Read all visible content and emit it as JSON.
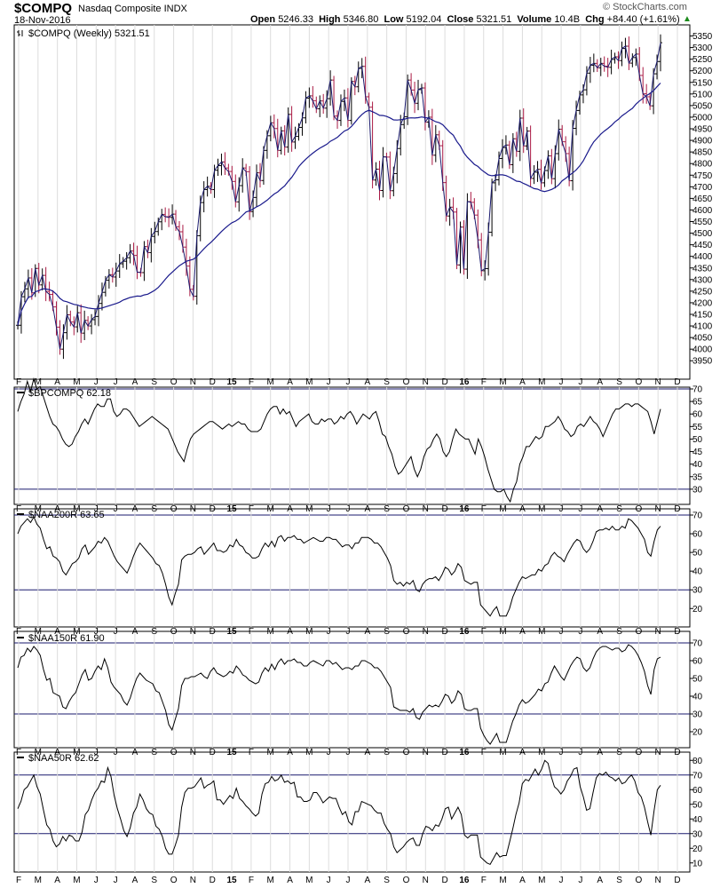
{
  "header": {
    "symbol": "$COMPQ",
    "symbol_name": "Nasdaq Composite INDX",
    "date": "18-Nov-2016",
    "watermark": "© StockCharts.com",
    "open_label": "Open",
    "open": "5246.33",
    "high_label": "High",
    "high": "5346.80",
    "low_label": "Low",
    "low": "5192.04",
    "close_label": "Close",
    "close": "5321.51",
    "volume_label": "Volume",
    "volume": "10.4B",
    "chg_label": "Chg",
    "chg": "+84.40 (+1.61%)",
    "chg_icon": "up-triangle-icon"
  },
  "colors": {
    "up_bar": "#000000",
    "down_bar": "#aa1a44",
    "price_line": "#1a1a6e",
    "moving_average": "#1a1a8c",
    "reference_line": "#1a1a6e",
    "indicator_line": "#000000"
  },
  "chart_data": [
    {
      "type": "ohlc",
      "title": "$COMPQ (Weekly) 5321.51",
      "ylim": [
        3905,
        5375
      ],
      "yticks": [
        3950,
        4000,
        4050,
        4100,
        4150,
        4200,
        4250,
        4300,
        4350,
        4400,
        4450,
        4500,
        4550,
        4600,
        4650,
        4700,
        4750,
        4800,
        4850,
        4900,
        4950,
        5000,
        5050,
        5100,
        5150,
        5200,
        5250,
        5300,
        5350
      ],
      "x_tick_labels": [
        "F",
        "M",
        "A",
        "M",
        "J",
        "J",
        "A",
        "S",
        "O",
        "N",
        "D",
        "15",
        "F",
        "M",
        "A",
        "M",
        "J",
        "J",
        "A",
        "S",
        "O",
        "N",
        "D",
        "16",
        "F",
        "M",
        "A",
        "M",
        "J",
        "J",
        "A",
        "S",
        "O",
        "N",
        "D"
      ],
      "close": [
        4103,
        4226,
        4260,
        4307,
        4243,
        4348,
        4277,
        4318,
        4249,
        4236,
        4182,
        4095,
        4000,
        4071,
        4148,
        4117,
        4096,
        4157,
        4069,
        4124,
        4100,
        4127,
        4141,
        4197,
        4245,
        4297,
        4321,
        4311,
        4337,
        4368,
        4379,
        4394,
        4423,
        4404,
        4332,
        4330,
        4442,
        4416,
        4486,
        4507,
        4549,
        4581,
        4571,
        4568,
        4582,
        4528,
        4506,
        4440,
        4358,
        4258,
        4228,
        4489,
        4632,
        4688,
        4702,
        4688,
        4771,
        4791,
        4807,
        4781,
        4766,
        4723,
        4635,
        4705,
        4781,
        4765,
        4593,
        4654,
        4760,
        4727,
        4857,
        4920,
        4976,
        4951,
        4857,
        4941,
        4871,
        5012,
        4893,
        4917,
        4956,
        4997,
        5082,
        5092,
        5071,
        5036,
        5070,
        5039,
        5080,
        5160,
        5005,
        4986,
        5068,
        5083,
        4986,
        5154,
        5131,
        5210,
        5219,
        5088,
        5043,
        4729,
        4776,
        4684,
        4829,
        4828,
        4683,
        4757,
        4865,
        4968,
        5002,
        5160,
        5117,
        5060,
        5119,
        5126,
        4979,
        5000,
        4836,
        4924,
        4877,
        4718,
        4574,
        4612,
        4591,
        4363,
        4526,
        4345,
        4636,
        4633,
        4578,
        4471,
        4338,
        4347,
        4504,
        4717,
        4730,
        4822,
        4869,
        4880,
        4795,
        4907,
        4853,
        4996,
        4876,
        4940,
        4736,
        4763,
        4775,
        4717,
        4770,
        4833,
        4735,
        4843,
        4948,
        4894,
        4843,
        4726,
        4952,
        5029,
        5096,
        5118,
        5190,
        5224,
        5232,
        5213,
        5232,
        5220,
        5215,
        5249,
        5260,
        5244,
        5296,
        5306,
        5233,
        5257,
        5272,
        5180,
        5101,
        5088,
        5049,
        5187,
        5240,
        5321
      ],
      "ma_period": 30,
      "ma_color": "#1a1a8c"
    },
    {
      "type": "line",
      "title": "$BPCOMPQ 62.18",
      "ylim": [
        25,
        70
      ],
      "yticks": [
        30,
        35,
        40,
        45,
        50,
        55,
        60,
        65,
        70
      ],
      "ref_lines": [
        30,
        70
      ],
      "values": [
        61,
        65,
        68,
        73,
        69,
        74,
        70,
        71,
        67,
        63,
        59,
        56,
        55,
        53,
        50,
        48,
        47,
        48,
        51,
        53,
        56,
        58,
        56,
        59,
        62,
        64,
        63,
        63,
        66,
        66,
        61,
        59,
        60,
        62,
        62,
        61,
        59,
        57,
        55,
        56,
        57,
        58,
        59,
        58,
        57,
        56,
        55,
        54,
        51,
        48,
        45,
        43,
        41,
        46,
        50,
        52,
        53,
        54,
        55,
        56,
        57,
        57,
        56,
        55,
        54,
        55,
        56,
        55,
        56,
        57,
        56,
        56,
        54,
        53,
        53,
        53,
        54,
        57,
        60,
        62,
        63,
        63,
        60,
        62,
        60,
        61,
        58,
        55,
        57,
        58,
        59,
        60,
        57,
        56,
        56,
        58,
        57,
        58,
        58,
        56,
        57,
        59,
        58,
        60,
        61,
        59,
        56,
        58,
        60,
        59,
        58,
        60,
        61,
        57,
        52,
        51,
        47,
        44,
        39,
        36,
        37,
        39,
        41,
        43,
        38,
        35,
        38,
        43,
        46,
        47,
        50,
        52,
        50,
        45,
        43,
        45,
        50,
        54,
        52,
        51,
        50,
        50,
        47,
        44,
        50,
        47,
        43,
        38,
        34,
        30,
        29,
        29,
        30,
        27,
        25,
        30,
        33,
        40,
        43,
        47,
        47,
        49,
        51,
        50,
        51,
        55,
        55,
        56,
        57,
        59,
        57,
        54,
        53,
        51,
        52,
        55,
        56,
        55,
        57,
        59,
        57,
        56,
        54,
        51,
        54,
        57,
        60,
        62,
        62,
        63,
        64,
        64,
        63,
        64,
        64,
        63,
        62,
        61,
        57,
        52,
        57,
        62
      ],
      "line_color": "#000000"
    },
    {
      "type": "line",
      "title": "$NAA200R 63.65",
      "ylim": [
        13,
        70
      ],
      "yticks": [
        20,
        30,
        40,
        50,
        60,
        70
      ],
      "ref_lines": [
        30,
        70
      ],
      "values": [
        60,
        64,
        66,
        68,
        66,
        69,
        65,
        63,
        57,
        52,
        53,
        48,
        47,
        45,
        40,
        38,
        41,
        44,
        45,
        47,
        52,
        54,
        49,
        51,
        53,
        56,
        55,
        58,
        56,
        52,
        48,
        45,
        43,
        41,
        39,
        43,
        48,
        52,
        55,
        53,
        51,
        49,
        47,
        44,
        43,
        39,
        33,
        26,
        22,
        28,
        33,
        46,
        48,
        49,
        49,
        50,
        52,
        53,
        49,
        51,
        53,
        55,
        51,
        51,
        50,
        51,
        54,
        53,
        57,
        54,
        53,
        50,
        49,
        47,
        47,
        48,
        52,
        55,
        53,
        56,
        53,
        58,
        59,
        56,
        58,
        58,
        59,
        57,
        57,
        55,
        56,
        57,
        58,
        57,
        56,
        56,
        58,
        58,
        57,
        57,
        55,
        53,
        54,
        54,
        52,
        55,
        55,
        58,
        58,
        58,
        57,
        55,
        55,
        53,
        50,
        47,
        43,
        35,
        33,
        34,
        32,
        34,
        33,
        35,
        30,
        29,
        33,
        35,
        36,
        36,
        37,
        35,
        38,
        42,
        41,
        38,
        40,
        44,
        42,
        35,
        34,
        33,
        34,
        34,
        22,
        20,
        18,
        16,
        19,
        21,
        16,
        16,
        16,
        20,
        26,
        30,
        34,
        37,
        36,
        37,
        38,
        38,
        41,
        40,
        43,
        44,
        48,
        50,
        48,
        47,
        45,
        49,
        52,
        55,
        57,
        56,
        52,
        50,
        52,
        56,
        61,
        62,
        62,
        63,
        62,
        64,
        62,
        62,
        64,
        63,
        68,
        67,
        65,
        63,
        60,
        57,
        50,
        48,
        56,
        62,
        64
      ],
      "line_color": "#000000"
    },
    {
      "type": "line",
      "title": "$NAA150R 61.90",
      "ylim": [
        13,
        73
      ],
      "yticks": [
        20,
        30,
        40,
        50,
        60,
        70
      ],
      "ref_lines": [
        30,
        70
      ],
      "values": [
        56,
        62,
        63,
        67,
        65,
        68,
        66,
        63,
        55,
        49,
        50,
        42,
        41,
        40,
        34,
        33,
        37,
        40,
        42,
        47,
        52,
        55,
        49,
        50,
        54,
        57,
        55,
        61,
        56,
        48,
        45,
        43,
        41,
        37,
        35,
        39,
        45,
        50,
        53,
        51,
        49,
        48,
        47,
        43,
        42,
        37,
        32,
        24,
        21,
        27,
        33,
        46,
        50,
        50,
        51,
        51,
        52,
        53,
        51,
        50,
        54,
        56,
        53,
        52,
        51,
        52,
        54,
        53,
        57,
        55,
        52,
        51,
        49,
        48,
        47,
        48,
        53,
        56,
        54,
        58,
        55,
        59,
        61,
        58,
        60,
        60,
        61,
        59,
        59,
        57,
        57,
        59,
        60,
        59,
        58,
        57,
        60,
        60,
        58,
        59,
        57,
        55,
        56,
        56,
        55,
        57,
        57,
        60,
        60,
        59,
        58,
        56,
        56,
        54,
        51,
        48,
        45,
        34,
        33,
        32,
        32,
        32,
        31,
        33,
        28,
        27,
        31,
        33,
        35,
        34,
        35,
        34,
        37,
        41,
        40,
        36,
        38,
        43,
        41,
        33,
        32,
        32,
        33,
        33,
        22,
        18,
        15,
        13,
        16,
        19,
        14,
        14,
        14,
        20,
        26,
        30,
        35,
        38,
        36,
        37,
        39,
        41,
        44,
        43,
        47,
        48,
        53,
        57,
        54,
        51,
        49,
        53,
        57,
        60,
        62,
        61,
        56,
        54,
        56,
        61,
        65,
        67,
        68,
        68,
        67,
        66,
        67,
        67,
        65,
        66,
        69,
        68,
        66,
        63,
        59,
        54,
        46,
        41,
        55,
        61,
        62
      ],
      "line_color": "#000000"
    },
    {
      "type": "line",
      "title": "$NAA50R 62.62",
      "ylim": [
        5,
        85
      ],
      "yticks": [
        10,
        20,
        30,
        40,
        50,
        60,
        70,
        80
      ],
      "ref_lines": [
        30,
        70
      ],
      "values": [
        47,
        52,
        60,
        62,
        66,
        70,
        62,
        57,
        46,
        36,
        33,
        25,
        21,
        23,
        28,
        25,
        29,
        28,
        25,
        25,
        31,
        43,
        46,
        53,
        58,
        61,
        66,
        65,
        75,
        69,
        56,
        47,
        40,
        32,
        28,
        34,
        44,
        48,
        57,
        53,
        47,
        44,
        43,
        35,
        33,
        28,
        20,
        16,
        16,
        22,
        29,
        48,
        58,
        61,
        61,
        62,
        65,
        68,
        61,
        63,
        64,
        66,
        53,
        53,
        50,
        53,
        56,
        54,
        61,
        54,
        52,
        49,
        47,
        44,
        42,
        44,
        57,
        64,
        65,
        69,
        66,
        67,
        70,
        65,
        66,
        64,
        65,
        55,
        55,
        52,
        52,
        53,
        58,
        58,
        55,
        51,
        53,
        55,
        54,
        54,
        48,
        43,
        45,
        38,
        36,
        45,
        45,
        52,
        51,
        50,
        49,
        46,
        44,
        44,
        37,
        33,
        30,
        21,
        17,
        19,
        21,
        24,
        26,
        27,
        22,
        22,
        30,
        35,
        34,
        32,
        36,
        35,
        40,
        47,
        48,
        40,
        44,
        48,
        43,
        29,
        27,
        29,
        29,
        29,
        14,
        12,
        10,
        9,
        13,
        17,
        14,
        15,
        15,
        24,
        33,
        43,
        51,
        64,
        67,
        66,
        70,
        74,
        70,
        74,
        80,
        78,
        69,
        62,
        60,
        57,
        60,
        66,
        69,
        74,
        75,
        62,
        55,
        46,
        47,
        58,
        68,
        71,
        70,
        72,
        69,
        68,
        66,
        68,
        64,
        65,
        68,
        70,
        66,
        58,
        55,
        48,
        38,
        29,
        46,
        60,
        63
      ],
      "line_color": "#000000"
    }
  ]
}
